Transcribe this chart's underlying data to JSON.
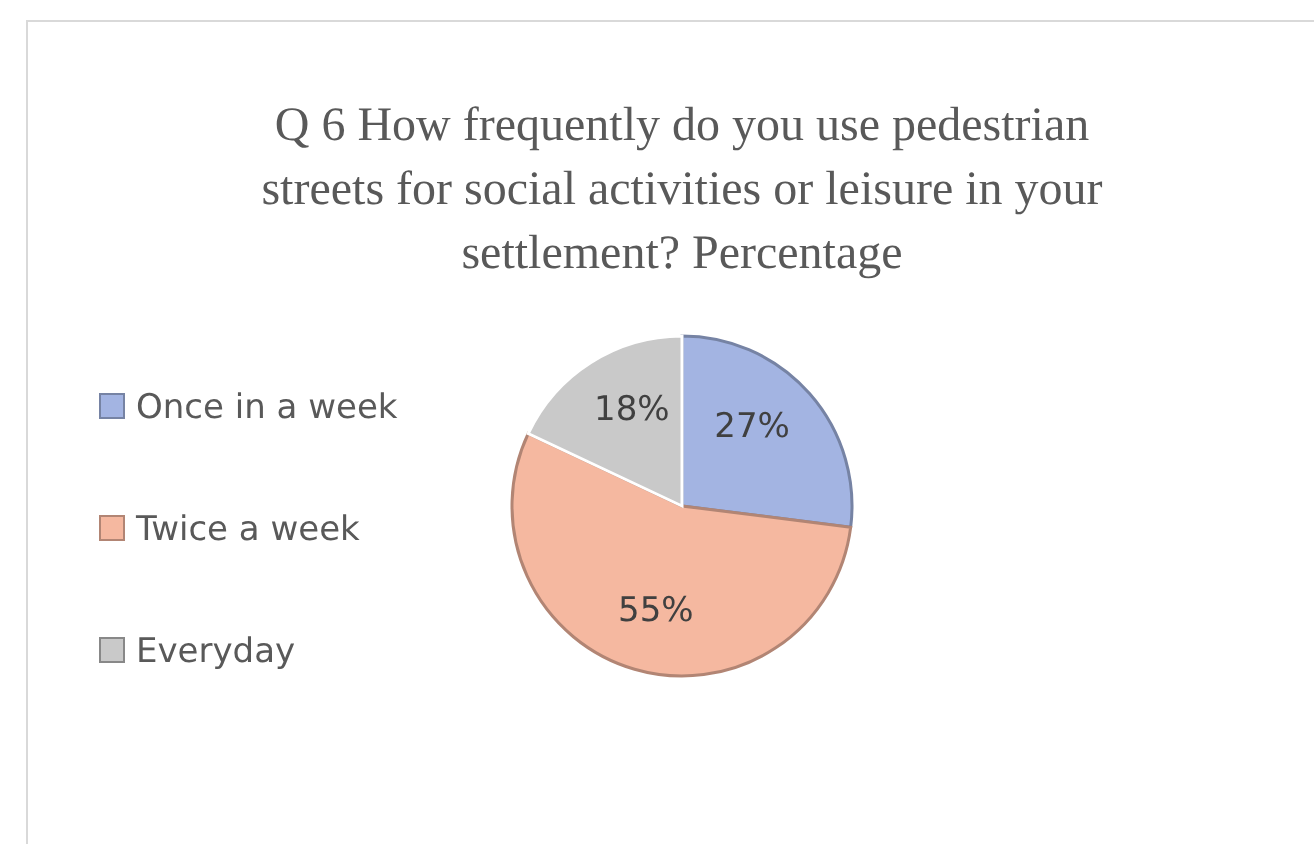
{
  "chart_data": {
    "type": "pie",
    "title": "Q 6 How frequently do you use pedestrian streets for social activities or leisure in your settlement? Percentage",
    "categories": [
      "Once in a week",
      "Twice a week",
      "Everyday"
    ],
    "values": [
      27,
      55,
      18
    ],
    "colors": [
      "#a3b4e2",
      "#f5b8a0",
      "#c9c9c9"
    ],
    "value_labels": [
      "27%",
      "55%",
      "18%"
    ],
    "legend": "left"
  }
}
